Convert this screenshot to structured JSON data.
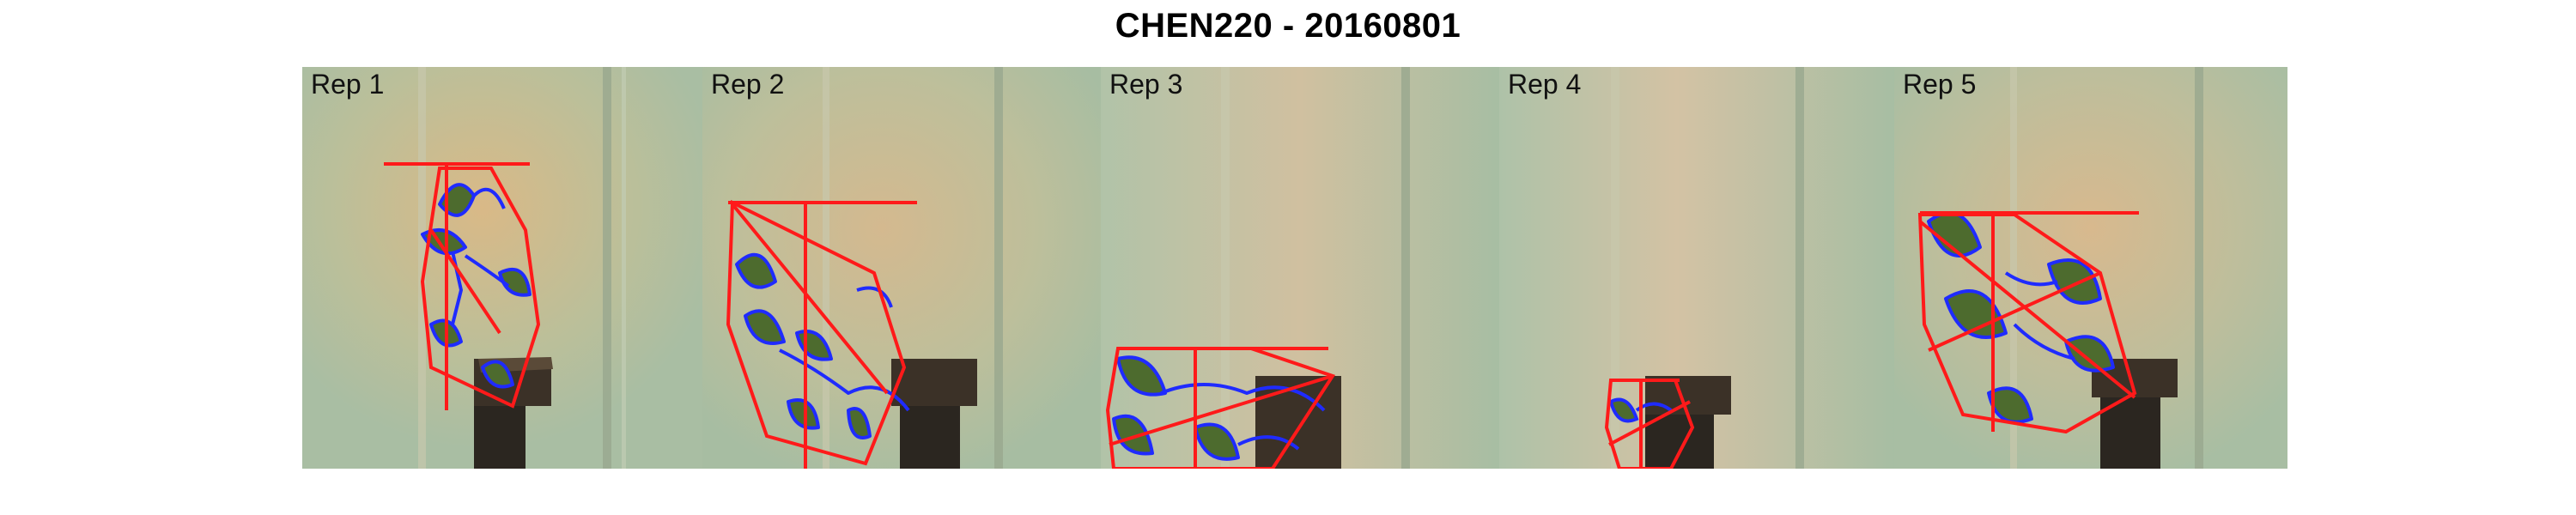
{
  "figure": {
    "title": "CHEN220 - 20160801"
  },
  "colors": {
    "hull_outline": "#ff1a1a",
    "leaf_contour": "#1f2bff",
    "leaf_fill": "#4d6b2e",
    "wall_green": "#aebfa2",
    "wall_warm": "#d9bd96",
    "pedestal": "#2b2620"
  },
  "panels": [
    {
      "label": "Rep 1"
    },
    {
      "label": "Rep 2"
    },
    {
      "label": "Rep 3"
    },
    {
      "label": "Rep 4"
    },
    {
      "label": "Rep 5"
    }
  ]
}
